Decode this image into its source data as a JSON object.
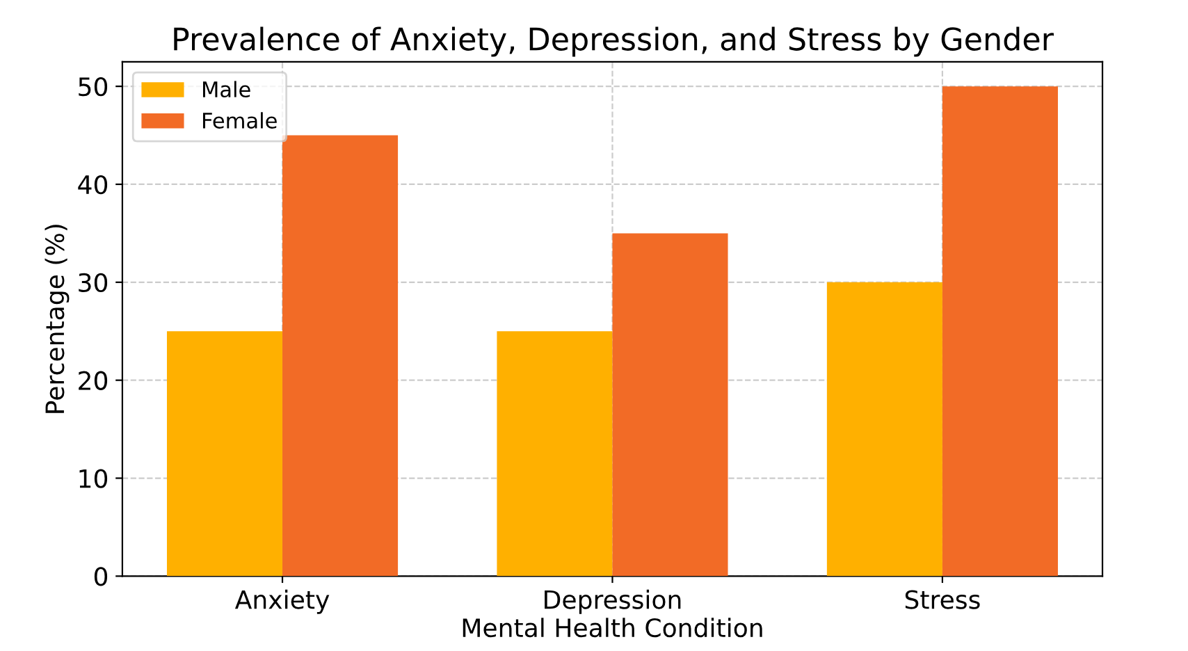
{
  "chart_data": {
    "type": "bar",
    "title": "Prevalence of Anxiety, Depression, and Stress by Gender",
    "xlabel": "Mental Health Condition",
    "ylabel": "Percentage (%)",
    "categories": [
      "Anxiety",
      "Depression",
      "Stress"
    ],
    "series": [
      {
        "name": "Male",
        "color": "#ffb000",
        "values": [
          25,
          25,
          30
        ]
      },
      {
        "name": "Female",
        "color": "#f26b26",
        "values": [
          45,
          35,
          50
        ]
      }
    ],
    "ylim": [
      0,
      52.5
    ],
    "yticks": [
      0,
      10,
      20,
      30,
      40,
      50
    ],
    "grid": true,
    "legend": "top left"
  }
}
